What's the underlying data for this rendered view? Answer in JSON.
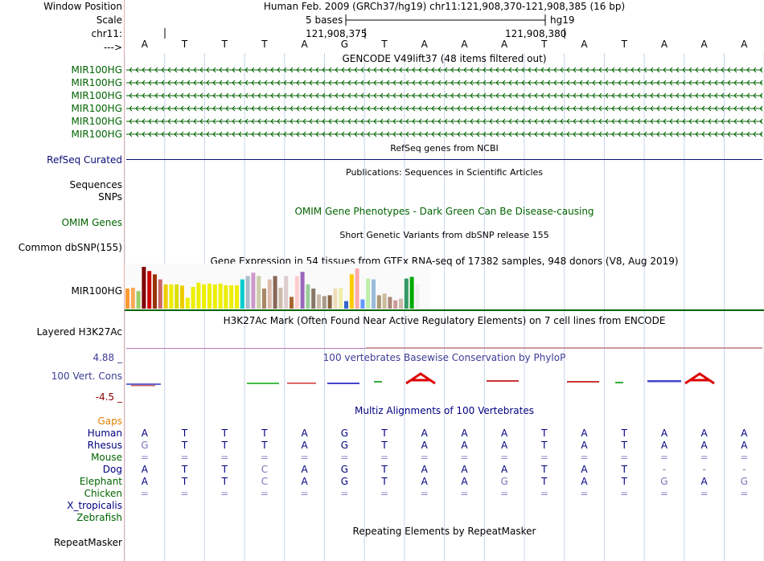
{
  "header": {
    "window_position_label": "Window Position",
    "scale_label": "Scale",
    "chr_label": "chr11:",
    "strand_arrow": "--->",
    "assembly_info": "Human Feb. 2009 (GRCh37/hg19)   chr11:121,908,370-121,908,385 (16 bp)",
    "scale_text": "5 bases",
    "genome": "hg19",
    "coord_left": "121,908,375",
    "coord_right": "121,908,380",
    "bases": [
      "A",
      "T",
      "T",
      "T",
      "A",
      "G",
      "T",
      "A",
      "A",
      "A",
      "T",
      "A",
      "T",
      "A",
      "A",
      "A"
    ]
  },
  "gencode": {
    "title": "GENCODE V49lift37 (48 items filtered out)",
    "gene_labels": [
      "MIR100HG",
      "MIR100HG",
      "MIR100HG",
      "MIR100HG",
      "MIR100HG",
      "MIR100HG"
    ]
  },
  "refseq": {
    "label": "RefSeq Curated",
    "title": "RefSeq genes from NCBI"
  },
  "publications": {
    "title": "Publications: Sequences in Scientific Articles"
  },
  "sequences": {
    "label": "Sequences"
  },
  "snps": {
    "label": "SNPs"
  },
  "omim": {
    "label": "OMIM Genes",
    "title": "OMIM Gene Phenotypes - Dark Green Can Be Disease-causing"
  },
  "dbsnp": {
    "label": "Common dbSNP(155)",
    "title": "Short Genetic Variants from dbSNP release 155"
  },
  "gtex": {
    "title": "Gene Expression in 54 tissues from GTEx RNA-seq of 17382 samples, 948 donors (V8, Aug 2019)",
    "label": "MIR100HG",
    "bar_heights_rel": [
      0.48,
      0.5,
      0.42,
      1.0,
      0.9,
      0.82,
      0.7,
      0.58,
      0.58,
      0.58,
      0.55,
      0.26,
      0.52,
      0.62,
      0.58,
      0.6,
      0.58,
      0.6,
      0.56,
      0.56,
      0.56,
      0.7,
      0.78,
      0.86,
      0.78,
      0.48,
      0.7,
      0.78,
      0.5,
      0.78,
      0.28,
      0.78,
      0.88,
      0.58,
      0.48,
      0.34,
      0.3,
      0.32,
      0.48,
      0.5,
      0.18,
      0.82,
      0.96,
      0.22,
      0.72,
      0.7,
      0.32,
      0.36,
      0.28,
      0.2,
      0.24,
      0.72,
      0.76,
      0.58
    ],
    "bar_colors": [
      "#ff9933",
      "#ffaa55",
      "#99cc66",
      "#800000",
      "#cc0000",
      "#993300",
      "#cc6666",
      "#eecc00",
      "#eeee00",
      "#dddd00",
      "#eecc00",
      "#eeee00",
      "#eeee00",
      "#eeee00",
      "#eeee00",
      "#eeee00",
      "#eeee00",
      "#eeee00",
      "#eeee00",
      "#eeee00",
      "#eeee00",
      "#00cccc",
      "#aabbcc",
      "#cc99cc",
      "#ccccaa",
      "#aa8866",
      "#ddbbaa",
      "#886655",
      "#ccbbaa",
      "#ddcccc",
      "#aa6633",
      "#ffcccc",
      "#9966bb",
      "#99cc99",
      "#887766",
      "#ccbbaa",
      "#aa9988",
      "#886644",
      "#eeddbb",
      "#eeeeaa",
      "#3366cc",
      "#ffcc00",
      "#ffaaaa",
      "#6699ff",
      "#bbeeaa",
      "#99bbdd",
      "#aa9977",
      "#ccbb99",
      "#aa8877",
      "#cc9999",
      "#ccbbaa",
      "#339966",
      "#00aa00",
      "#eeeeee"
    ]
  },
  "h3k27ac": {
    "label": "Layered H3K27Ac",
    "title": "H3K27Ac Mark (Often Found Near Active Regulatory Elements) on 7 cell lines from ENCODE"
  },
  "conservation": {
    "label": "100 Vert. Cons",
    "max": "4.88 _",
    "min": "-4.5 _",
    "title": "100 vertebrates Basewise Conservation by PhyloP"
  },
  "multiz": {
    "title": "Multiz Alignments of 100 Vertebrates",
    "gaps_label": "Gaps",
    "species": [
      {
        "name": "Human",
        "color": "#000080",
        "bases": [
          "A",
          "T",
          "T",
          "T",
          "A",
          "G",
          "T",
          "A",
          "A",
          "A",
          "T",
          "A",
          "T",
          "A",
          "A",
          "A"
        ]
      },
      {
        "name": "Rhesus",
        "color": "#000080",
        "bases": [
          "G",
          "T",
          "T",
          "T",
          "A",
          "G",
          "T",
          "A",
          "A",
          "A",
          "T",
          "A",
          "T",
          "A",
          "A",
          "A"
        ]
      },
      {
        "name": "Mouse",
        "color": "#006400",
        "bases": [
          "=",
          "=",
          "=",
          "=",
          "=",
          "=",
          "=",
          "=",
          "=",
          "=",
          "=",
          "=",
          "=",
          "=",
          "=",
          "="
        ]
      },
      {
        "name": "Dog",
        "color": "#000080",
        "bases": [
          "A",
          "T",
          "T",
          "C",
          "A",
          "G",
          "T",
          "A",
          "A",
          "A",
          "T",
          "A",
          "T",
          "-",
          "-",
          "-"
        ]
      },
      {
        "name": "Elephant",
        "color": "#006400",
        "bases": [
          "A",
          "T",
          "T",
          "C",
          "A",
          "G",
          "T",
          "A",
          "A",
          "G",
          "T",
          "A",
          "T",
          "G",
          "A",
          "G"
        ]
      },
      {
        "name": "Chicken",
        "color": "#006400",
        "bases": [
          "=",
          "=",
          "=",
          "=",
          "=",
          "=",
          "=",
          "=",
          "=",
          "=",
          "=",
          "=",
          "=",
          "=",
          "=",
          "="
        ]
      },
      {
        "name": "X_tropicalis",
        "color": "#000080",
        "bases": []
      },
      {
        "name": "Zebrafish",
        "color": "#006400",
        "bases": []
      }
    ]
  },
  "repeatmasker": {
    "label": "RepeatMasker",
    "title": "Repeating Elements by RepeatMasker"
  },
  "colors": {
    "gencode": "#006400",
    "refseq": "#0c0c78",
    "omim": "#006400",
    "conservation": "#3c3c96",
    "cons_min": "#8b0000",
    "gaps": "#e08000"
  }
}
